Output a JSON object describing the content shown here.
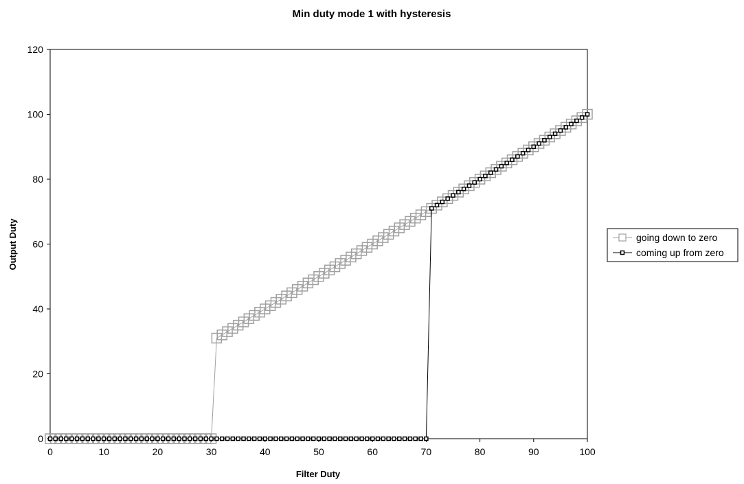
{
  "chart_data": {
    "type": "line",
    "title": "Min duty mode 1 with hysteresis",
    "xlabel": "Filter Duty",
    "ylabel": "Output Duty",
    "xlim": [
      0,
      100
    ],
    "ylim": [
      0,
      120
    ],
    "xticks": [
      0,
      10,
      20,
      30,
      40,
      50,
      60,
      70,
      80,
      90,
      100
    ],
    "yticks": [
      0,
      20,
      40,
      60,
      80,
      100,
      120
    ],
    "grid": false,
    "legend_position": "right",
    "series": [
      {
        "name": "going down to zero",
        "color": "#a0a0a0",
        "marker": "hollow-square-large",
        "x": [
          0,
          1,
          2,
          3,
          4,
          5,
          6,
          7,
          8,
          9,
          10,
          11,
          12,
          13,
          14,
          15,
          16,
          17,
          18,
          19,
          20,
          21,
          22,
          23,
          24,
          25,
          26,
          27,
          28,
          29,
          30,
          31,
          32,
          33,
          34,
          35,
          36,
          37,
          38,
          39,
          40,
          41,
          42,
          43,
          44,
          45,
          46,
          47,
          48,
          49,
          50,
          51,
          52,
          53,
          54,
          55,
          56,
          57,
          58,
          59,
          60,
          61,
          62,
          63,
          64,
          65,
          66,
          67,
          68,
          69,
          70,
          71,
          72,
          73,
          74,
          75,
          76,
          77,
          78,
          79,
          80,
          81,
          82,
          83,
          84,
          85,
          86,
          87,
          88,
          89,
          90,
          91,
          92,
          93,
          94,
          95,
          96,
          97,
          98,
          99,
          100
        ],
        "y": [
          0,
          0,
          0,
          0,
          0,
          0,
          0,
          0,
          0,
          0,
          0,
          0,
          0,
          0,
          0,
          0,
          0,
          0,
          0,
          0,
          0,
          0,
          0,
          0,
          0,
          0,
          0,
          0,
          0,
          0,
          0,
          31,
          32,
          33,
          34,
          35,
          36,
          37,
          38,
          39,
          40,
          41,
          42,
          43,
          44,
          45,
          46,
          47,
          48,
          49,
          50,
          51,
          52,
          53,
          54,
          55,
          56,
          57,
          58,
          59,
          60,
          61,
          62,
          63,
          64,
          65,
          66,
          67,
          68,
          69,
          70,
          71,
          72,
          73,
          74,
          75,
          76,
          77,
          78,
          79,
          80,
          81,
          82,
          83,
          84,
          85,
          86,
          87,
          88,
          89,
          90,
          91,
          92,
          93,
          94,
          95,
          96,
          97,
          98,
          99,
          100
        ]
      },
      {
        "name": "coming up from zero",
        "color": "#000000",
        "marker": "small-square",
        "x": [
          0,
          1,
          2,
          3,
          4,
          5,
          6,
          7,
          8,
          9,
          10,
          11,
          12,
          13,
          14,
          15,
          16,
          17,
          18,
          19,
          20,
          21,
          22,
          23,
          24,
          25,
          26,
          27,
          28,
          29,
          30,
          31,
          32,
          33,
          34,
          35,
          36,
          37,
          38,
          39,
          40,
          41,
          42,
          43,
          44,
          45,
          46,
          47,
          48,
          49,
          50,
          51,
          52,
          53,
          54,
          55,
          56,
          57,
          58,
          59,
          60,
          61,
          62,
          63,
          64,
          65,
          66,
          67,
          68,
          69,
          70,
          71,
          72,
          73,
          74,
          75,
          76,
          77,
          78,
          79,
          80,
          81,
          82,
          83,
          84,
          85,
          86,
          87,
          88,
          89,
          90,
          91,
          92,
          93,
          94,
          95,
          96,
          97,
          98,
          99,
          100
        ],
        "y": [
          0,
          0,
          0,
          0,
          0,
          0,
          0,
          0,
          0,
          0,
          0,
          0,
          0,
          0,
          0,
          0,
          0,
          0,
          0,
          0,
          0,
          0,
          0,
          0,
          0,
          0,
          0,
          0,
          0,
          0,
          0,
          0,
          0,
          0,
          0,
          0,
          0,
          0,
          0,
          0,
          0,
          0,
          0,
          0,
          0,
          0,
          0,
          0,
          0,
          0,
          0,
          0,
          0,
          0,
          0,
          0,
          0,
          0,
          0,
          0,
          0,
          0,
          0,
          0,
          0,
          0,
          0,
          0,
          0,
          0,
          0,
          71,
          72,
          73,
          74,
          75,
          76,
          77,
          78,
          79,
          80,
          81,
          82,
          83,
          84,
          85,
          86,
          87,
          88,
          89,
          90,
          91,
          92,
          93,
          94,
          95,
          96,
          97,
          98,
          99,
          100
        ]
      }
    ]
  }
}
